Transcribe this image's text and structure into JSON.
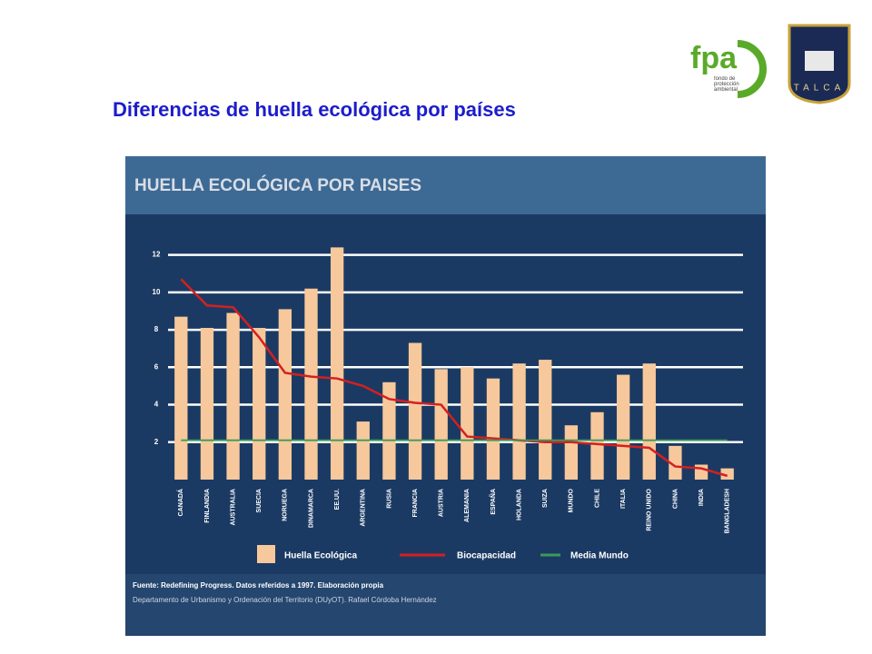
{
  "slide": {
    "title": "Diferencias de huella ecológica por países"
  },
  "logos": {
    "fpa": "fpa",
    "fpa_text": "fondo de protección ambiental",
    "talca": "TALCA"
  },
  "chart_data": {
    "type": "bar",
    "title": "HUELLA ECOLÓGICA POR PAISES",
    "categories": [
      "CANADÁ",
      "FINLANDIA",
      "AUSTRALIA",
      "SUECIA",
      "NORUEGA",
      "DINAMARCA",
      "EE.UU.",
      "ARGENTINA",
      "RUSIA",
      "FRANCIA",
      "AUSTRIA",
      "ALEMANIA",
      "ESPAÑA",
      "HOLANDA",
      "SUIZA",
      "MUNDO",
      "CHILE",
      "ITALIA",
      "REINO UNIDO",
      "CHINA",
      "INDIA",
      "BANGLADESH"
    ],
    "series": [
      {
        "name": "Huella Ecológica",
        "type": "bar",
        "color": "#f7c89b",
        "values": [
          8.7,
          8.1,
          8.9,
          8.1,
          9.1,
          10.2,
          12.4,
          3.1,
          5.2,
          7.3,
          5.9,
          6.0,
          5.4,
          6.2,
          6.4,
          2.9,
          3.6,
          5.6,
          6.2,
          1.8,
          0.8,
          0.6
        ]
      },
      {
        "name": "Biocapacidad",
        "type": "line",
        "color": "#d42020",
        "values": [
          10.7,
          9.3,
          9.2,
          7.6,
          5.7,
          5.5,
          5.4,
          5.0,
          4.3,
          4.1,
          4.0,
          2.3,
          2.2,
          2.1,
          2.0,
          2.0,
          1.9,
          1.8,
          1.7,
          0.7,
          0.6,
          0.2
        ]
      },
      {
        "name": "Media Mundo",
        "type": "line",
        "color": "#3c9a5a",
        "values": [
          2.1,
          2.1,
          2.1,
          2.1,
          2.1,
          2.1,
          2.1,
          2.1,
          2.1,
          2.1,
          2.1,
          2.1,
          2.1,
          2.1,
          2.1,
          2.1,
          2.1,
          2.1,
          2.1,
          2.1,
          2.1,
          2.1
        ]
      }
    ],
    "ylim": [
      0,
      13
    ],
    "yticks": [
      2,
      4,
      6,
      8,
      10,
      12
    ],
    "grid": true,
    "source": [
      "Fuente: Redefining Progress. Datos referidos a 1997. Elaboración propia",
      "Departamento de Urbanismo y Ordenación del Territorio (DUyOT). Rafael Córdoba Hernández"
    ]
  }
}
